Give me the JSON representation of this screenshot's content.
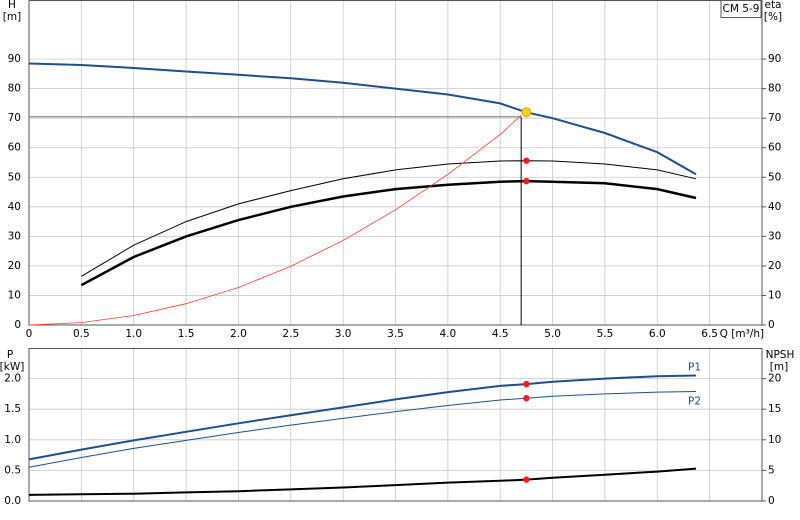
{
  "chart_data": [
    {
      "type": "line",
      "title": "CM 5-9",
      "y_label": "H",
      "y_unit": "[m]",
      "y2_label": "eta",
      "y2_unit": "[%]",
      "x_label": "Q [m³/h]",
      "xlim": [
        0,
        7
      ],
      "xticks": [
        {
          "value": 0,
          "label": "0"
        },
        {
          "value": 0.5,
          "label": "0.5"
        },
        {
          "value": 1,
          "label": "1.0"
        },
        {
          "value": 1.5,
          "label": "1.5"
        },
        {
          "value": 2,
          "label": "2.0"
        },
        {
          "value": 2.5,
          "label": "2.5"
        },
        {
          "value": 3,
          "label": "3.0"
        },
        {
          "value": 3.5,
          "label": "3.5"
        },
        {
          "value": 4,
          "label": "4.0"
        },
        {
          "value": 4.5,
          "label": "4.5"
        },
        {
          "value": 5,
          "label": "5.0"
        },
        {
          "value": 5.5,
          "label": "5.5"
        },
        {
          "value": 6,
          "label": "6.0"
        },
        {
          "value": 6.5,
          "label": "6.5"
        }
      ],
      "ylim": [
        0,
        110
      ],
      "yticks": [
        0,
        10,
        20,
        30,
        40,
        50,
        60,
        70,
        80,
        90
      ],
      "y2lim": [
        0,
        110
      ],
      "y2ticks": [
        0,
        10,
        20,
        30,
        40,
        50,
        60,
        70,
        80,
        90
      ],
      "grid": true,
      "series": [
        {
          "color": "#1f4e8c",
          "width": 2,
          "x": [
            0,
            0.5,
            1,
            1.5,
            2,
            2.5,
            3,
            3.5,
            4,
            4.5,
            4.75,
            5,
            5.5,
            6,
            6.37
          ],
          "values": [
            88.5,
            88,
            87,
            85.8,
            84.7,
            83.5,
            82,
            80,
            78,
            75,
            72,
            70,
            65,
            58.5,
            51
          ]
        },
        {
          "color": "#000000",
          "width": 1,
          "axis": "y2",
          "x": [
            0.5,
            1,
            1.5,
            2,
            2.5,
            3,
            3.5,
            4,
            4.5,
            4.75,
            5,
            5.5,
            6,
            6.37
          ],
          "values": [
            16.5,
            27,
            35,
            41,
            45.5,
            49.5,
            52.5,
            54.5,
            55.5,
            55.6,
            55.5,
            54.5,
            52.5,
            49.5
          ]
        },
        {
          "color": "#000000",
          "width": 2.5,
          "axis": "y2",
          "x": [
            0.5,
            1,
            1.5,
            2,
            2.5,
            3,
            3.5,
            4,
            4.5,
            4.75,
            5,
            5.5,
            6,
            6.37
          ],
          "values": [
            13.5,
            23,
            30,
            35.5,
            40,
            43.5,
            46,
            47.5,
            48.5,
            48.7,
            48.5,
            48,
            46,
            43
          ]
        },
        {
          "color": "#ff3b30",
          "width": 0.8,
          "x": [
            0,
            0.5,
            1,
            1.5,
            2,
            2.5,
            3,
            3.5,
            4,
            4.5,
            4.7
          ],
          "values": [
            0,
            0.8,
            3.2,
            7.2,
            12.7,
            19.9,
            28.6,
            39,
            51,
            64.5,
            71
          ]
        }
      ],
      "duty_point": {
        "x": 4.7,
        "y": 70.5
      },
      "points": [
        {
          "x": 4.75,
          "y": 72,
          "color": "#ffd21f"
        },
        {
          "x": 4.75,
          "y": 55.6,
          "color": "#ff1a1a"
        },
        {
          "x": 4.75,
          "y": 48.7,
          "color": "#ff1a1a"
        }
      ]
    },
    {
      "type": "line",
      "y_label": "P",
      "y_unit": "[kW]",
      "y2_label": "NPSH",
      "y2_unit": "[m]",
      "xlim": [
        0,
        7
      ],
      "xticks": [
        0,
        0.5,
        1,
        1.5,
        2,
        2.5,
        3,
        3.5,
        4,
        4.5,
        5,
        5.5,
        6,
        6.5
      ],
      "ylim": [
        0,
        2.5
      ],
      "yticks": [
        {
          "value": 0,
          "label": "0.0"
        },
        {
          "value": 0.5,
          "label": "0.5"
        },
        {
          "value": 1,
          "label": "1.0"
        },
        {
          "value": 1.5,
          "label": "1.5"
        },
        {
          "value": 2,
          "label": "2.0"
        }
      ],
      "y2lim": [
        0,
        25
      ],
      "y2ticks": [
        0,
        5,
        10,
        15,
        20
      ],
      "grid": true,
      "series": [
        {
          "name": "P1",
          "color": "#1f4e8c",
          "width": 2,
          "x": [
            0,
            0.5,
            1,
            1.5,
            2,
            2.5,
            3,
            3.5,
            4,
            4.5,
            4.75,
            5,
            5.5,
            6,
            6.37
          ],
          "values": [
            0.68,
            0.84,
            0.99,
            1.13,
            1.27,
            1.4,
            1.53,
            1.66,
            1.78,
            1.88,
            1.91,
            1.95,
            2,
            2.04,
            2.05
          ]
        },
        {
          "name": "P2",
          "color": "#1f4e8c",
          "width": 1,
          "x": [
            0,
            0.5,
            1,
            1.5,
            2,
            2.5,
            3,
            3.5,
            4,
            4.5,
            4.75,
            5,
            5.5,
            6,
            6.37
          ],
          "values": [
            0.55,
            0.71,
            0.86,
            0.99,
            1.12,
            1.24,
            1.35,
            1.46,
            1.56,
            1.65,
            1.68,
            1.71,
            1.75,
            1.78,
            1.79
          ]
        },
        {
          "color": "#000000",
          "width": 2,
          "axis": "y2",
          "x": [
            0,
            0.5,
            1,
            1.5,
            2,
            2.5,
            3,
            3.5,
            4,
            4.5,
            4.75,
            5,
            5.5,
            6,
            6.37
          ],
          "values": [
            1,
            1.1,
            1.2,
            1.4,
            1.6,
            1.9,
            2.2,
            2.6,
            3,
            3.3,
            3.5,
            3.8,
            4.3,
            4.8,
            5.3
          ]
        }
      ],
      "points": [
        {
          "x": 4.75,
          "y": 1.91,
          "color": "#ff1a1a"
        },
        {
          "x": 4.75,
          "y": 1.68,
          "color": "#ff1a1a"
        },
        {
          "x": 4.75,
          "y": 3.5,
          "color": "#ff1a1a",
          "axis": "y2"
        }
      ]
    }
  ]
}
